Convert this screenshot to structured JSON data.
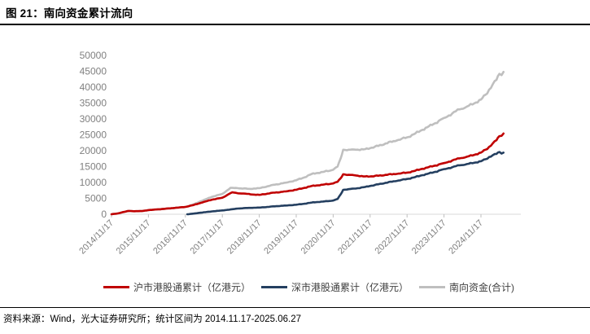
{
  "header": {
    "title": "图 21：南向资金累计流向"
  },
  "footer": {
    "source": "资料来源：Wind，光大证券研究所；统计区间为 2014.11.17-2025.06.27"
  },
  "colors": {
    "sh_line": "#C00000",
    "sz_line": "#243F60",
    "total_line": "#BFBFBF",
    "axis_label": "#808080",
    "axis_line": "#D9D9D9",
    "tick_mark": "#BFBFBF",
    "legend_text": "#404040",
    "rule": "#000000"
  },
  "chart_data": {
    "type": "line",
    "title": "南向资金累计流向",
    "xlabel": "",
    "ylabel": "",
    "unit": "亿港元",
    "ylim": [
      0,
      50000
    ],
    "yticks": [
      0,
      5000,
      10000,
      15000,
      20000,
      25000,
      30000,
      35000,
      40000,
      45000,
      50000
    ],
    "xtick_labels": [
      "2014/11/17",
      "2015/11/17",
      "2016/11/17",
      "2017/11/17",
      "2018/11/17",
      "2019/11/17",
      "2020/11/17",
      "2021/11/17",
      "2022/11/17",
      "2023/11/17",
      "2024/11/17"
    ],
    "xtick_years": [
      2014.88,
      2015.88,
      2016.88,
      2017.88,
      2018.88,
      2019.88,
      2020.88,
      2021.88,
      2022.88,
      2023.88,
      2024.88
    ],
    "x_range": [
      2014.88,
      2025.49
    ],
    "grid": false,
    "legend_position": "bottom",
    "series": [
      {
        "name": "沪市港股通累计（亿港元）",
        "color": "#C00000",
        "x": [
          2014.88,
          2015.05,
          2015.2,
          2015.35,
          2015.5,
          2015.7,
          2015.88,
          2016.1,
          2016.3,
          2016.6,
          2016.88,
          2017.1,
          2017.3,
          2017.6,
          2017.88,
          2018.05,
          2018.15,
          2018.3,
          2018.5,
          2018.7,
          2018.88,
          2019.1,
          2019.3,
          2019.6,
          2019.88,
          2020.1,
          2020.3,
          2020.6,
          2020.88,
          2021.0,
          2021.08,
          2021.15,
          2021.3,
          2021.5,
          2021.7,
          2021.88,
          2022.1,
          2022.3,
          2022.6,
          2022.88,
          2023.1,
          2023.3,
          2023.6,
          2023.88,
          2024.1,
          2024.3,
          2024.5,
          2024.7,
          2024.88,
          2025.0,
          2025.1,
          2025.2,
          2025.3,
          2025.38,
          2025.44,
          2025.49
        ],
        "values": [
          0,
          250,
          700,
          1050,
          950,
          1000,
          1300,
          1500,
          1700,
          2000,
          2300,
          2900,
          3600,
          4600,
          5200,
          6300,
          6900,
          6600,
          6500,
          6200,
          6100,
          6500,
          6800,
          7200,
          7700,
          8300,
          8900,
          9300,
          9700,
          10200,
          11300,
          12600,
          12400,
          12200,
          11900,
          11900,
          12100,
          12400,
          12700,
          13100,
          13700,
          14300,
          15200,
          16100,
          16900,
          17600,
          18100,
          18700,
          19400,
          20300,
          21200,
          22300,
          23300,
          24600,
          24700,
          25400
        ]
      },
      {
        "name": "深市港股通累计（亿港元）",
        "color": "#243F60",
        "x": [
          2016.93,
          2017.1,
          2017.3,
          2017.6,
          2017.88,
          2018.1,
          2018.3,
          2018.6,
          2018.88,
          2019.1,
          2019.3,
          2019.6,
          2019.88,
          2020.1,
          2020.3,
          2020.6,
          2020.88,
          2021.0,
          2021.08,
          2021.15,
          2021.3,
          2021.5,
          2021.7,
          2021.88,
          2022.1,
          2022.3,
          2022.6,
          2022.88,
          2023.1,
          2023.3,
          2023.6,
          2023.88,
          2024.1,
          2024.3,
          2024.5,
          2024.7,
          2024.88,
          2025.0,
          2025.1,
          2025.2,
          2025.3,
          2025.38,
          2025.44,
          2025.49
        ],
        "values": [
          0,
          200,
          500,
          900,
          1200,
          1500,
          1800,
          2000,
          2100,
          2300,
          2500,
          2750,
          3000,
          3300,
          3700,
          4000,
          4300,
          4800,
          6200,
          7700,
          7900,
          8100,
          8500,
          8900,
          9400,
          9900,
          10500,
          11100,
          11700,
          12300,
          13200,
          14200,
          14800,
          15400,
          15800,
          16200,
          16700,
          17300,
          18000,
          18600,
          19000,
          19600,
          19100,
          19400
        ]
      },
      {
        "name": "南向资金(合计)",
        "color": "#BFBFBF",
        "x": [
          2014.88,
          2015.05,
          2015.2,
          2015.35,
          2015.5,
          2015.7,
          2015.88,
          2016.1,
          2016.3,
          2016.6,
          2016.88,
          2016.93,
          2017.1,
          2017.3,
          2017.6,
          2017.88,
          2018.1,
          2018.3,
          2018.6,
          2018.88,
          2019.1,
          2019.3,
          2019.6,
          2019.88,
          2020.1,
          2020.3,
          2020.6,
          2020.88,
          2021.0,
          2021.08,
          2021.15,
          2021.3,
          2021.5,
          2021.7,
          2021.88,
          2022.1,
          2022.3,
          2022.6,
          2022.88,
          2023.1,
          2023.3,
          2023.6,
          2023.88,
          2024.1,
          2024.3,
          2024.5,
          2024.7,
          2024.88,
          2025.0,
          2025.1,
          2025.2,
          2025.3,
          2025.38,
          2025.44,
          2025.49
        ],
        "values": [
          0,
          250,
          700,
          1050,
          950,
          1000,
          1300,
          1500,
          1700,
          2000,
          2300,
          2440,
          3100,
          4100,
          5500,
          6400,
          8300,
          8200,
          8000,
          8200,
          8800,
          9300,
          9950,
          10700,
          11600,
          12700,
          13300,
          14000,
          15000,
          17500,
          20300,
          20300,
          20300,
          20400,
          20800,
          21500,
          22300,
          23200,
          24200,
          25400,
          26600,
          28400,
          30300,
          31700,
          33000,
          33900,
          34900,
          36100,
          37600,
          39200,
          40900,
          42300,
          44200,
          43800,
          44800
        ]
      }
    ]
  }
}
